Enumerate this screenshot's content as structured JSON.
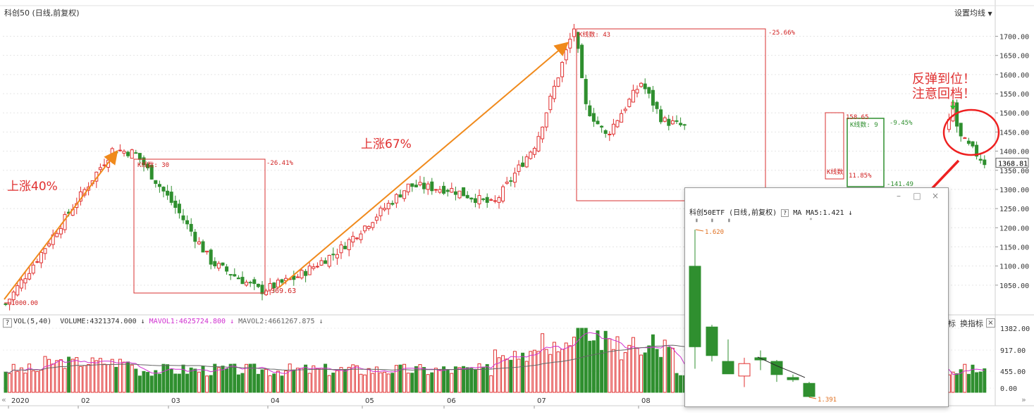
{
  "header": {
    "title": "科创50 (日线,前复权)",
    "settings_label": "设置均线"
  },
  "price_axis": {
    "ticks": [
      "1700.00",
      "1650.00",
      "1600.00",
      "1550.00",
      "1500.00",
      "1450.00",
      "1400.00",
      "1350.00",
      "1300.00",
      "1250.00",
      "1200.00",
      "1150.00",
      "1100.00",
      "1050.00"
    ],
    "current_price": "1368.81"
  },
  "annotations": {
    "rise1": "上涨40%",
    "rise2": "上涨67%",
    "warn_line1": "反弹到位！",
    "warn_line2": "注意回档！",
    "start_low": "1000.00",
    "box1_count": "K线数: 30",
    "box1_pct": "-26.41%",
    "box1_pts": "-369.63",
    "box2_count": "K线数: 43",
    "box2_pct": "-25.66%",
    "box3_count": "K线数: 9",
    "box3_pct": "-9.45%",
    "box3_pts": "-141.49",
    "box4_count": "K线数",
    "box4_pct": "11.85%",
    "box4_pts": "158.65"
  },
  "volume_panel": {
    "label_vol": "VOL(5,40)",
    "label_volume": "VOLUME:4321374.000",
    "label_mavol1": "MAVOL1:4625724.800",
    "label_mavol2": "MAVOL2:4661267.875",
    "ticks": [
      "1382.00",
      "917.00",
      "455.00",
      "0.00"
    ],
    "btn_index_suffix": "标",
    "btn_switch": "换指标"
  },
  "time_axis": {
    "labels": [
      "2020",
      "02",
      "03",
      "04",
      "05",
      "06",
      "07",
      "08"
    ]
  },
  "popup": {
    "title": "科创50ETF (日线,前复权)",
    "ma_label": "MA",
    "ma5_label": "MA5:1.421",
    "high_label": "1.620",
    "low_label": "1.391",
    "window_buttons": [
      "–",
      "□",
      "×"
    ]
  },
  "colors": {
    "up": "#e03030",
    "down": "#2f8f2f",
    "arrow_orange": "#f08a1c",
    "arrow_red": "#ee2020",
    "mavol1": "#d030d0",
    "mavol2": "#666666"
  },
  "chart_data": {
    "type": "candlestick",
    "title": "科创50 (日线,前复权)",
    "ylim": [
      975,
      1740
    ],
    "months": [
      "2020",
      "02",
      "03",
      "04",
      "05",
      "06",
      "07",
      "08"
    ],
    "anchor_closes": {
      "start": 1000,
      "high_jan": 1405,
      "low_mar": 1035,
      "high_jul": 1725,
      "low_aug": 1290,
      "last": 1368.81
    },
    "volume_ylim": [
      0,
      1600
    ],
    "popup_etf": {
      "title": "科创50ETF (日线,前复权)",
      "high": 1.62,
      "low": 1.391,
      "ma5": 1.421,
      "candles": [
        {
          "o": 1.46,
          "h": 1.62,
          "l": 1.43,
          "c": 1.57,
          "dir": "down"
        },
        {
          "o": 1.487,
          "h": 1.49,
          "l": 1.44,
          "c": 1.448,
          "dir": "down"
        },
        {
          "o": 1.44,
          "h": 1.47,
          "l": 1.425,
          "c": 1.423,
          "dir": "down"
        },
        {
          "o": 1.42,
          "h": 1.445,
          "l": 1.405,
          "c": 1.437,
          "dir": "up"
        },
        {
          "o": 1.445,
          "h": 1.455,
          "l": 1.428,
          "c": 1.442,
          "dir": "down"
        },
        {
          "o": 1.44,
          "h": 1.442,
          "l": 1.412,
          "c": 1.422,
          "dir": "down"
        },
        {
          "o": 1.418,
          "h": 1.422,
          "l": 1.412,
          "c": 1.415,
          "dir": "down"
        },
        {
          "o": 1.41,
          "h": 1.412,
          "l": 1.391,
          "c": 1.392,
          "dir": "down"
        }
      ]
    }
  }
}
